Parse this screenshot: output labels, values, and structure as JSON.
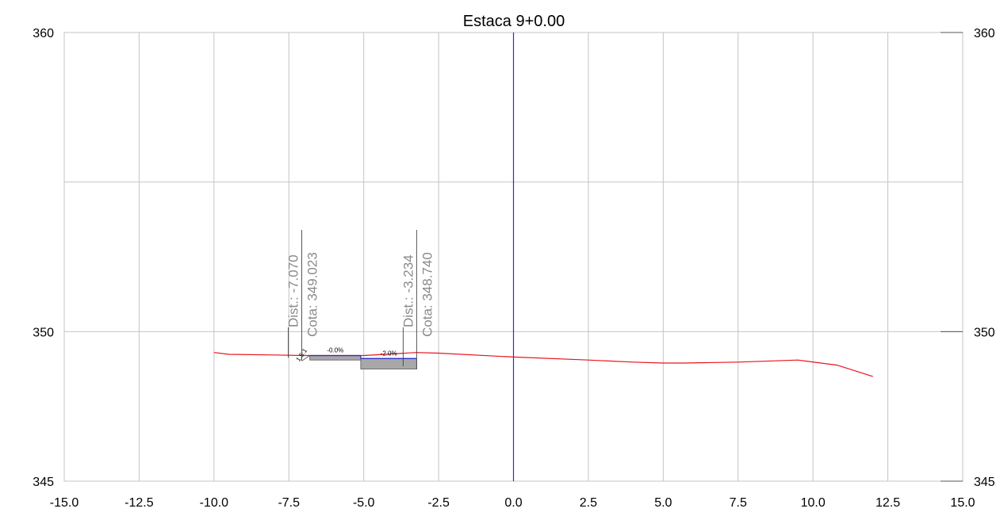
{
  "chart_data": {
    "type": "line",
    "title": "Estaca 9+0.00",
    "xlim": [
      -15.0,
      15.0
    ],
    "ylim": [
      345,
      360
    ],
    "x_ticks": [
      "-15.0",
      "-12.5",
      "-10.0",
      "-7.5",
      "-5.0",
      "-2.5",
      "0.0",
      "2.5",
      "5.0",
      "7.5",
      "10.0",
      "12.5",
      "15.0"
    ],
    "x_tick_values": [
      -15.0,
      -12.5,
      -10.0,
      -7.5,
      -5.0,
      -2.5,
      0.0,
      2.5,
      5.0,
      7.5,
      10.0,
      12.5,
      15.0
    ],
    "y_ticks_left": [
      "360",
      "350",
      "345"
    ],
    "y_ticks_right": [
      "360",
      "350",
      "345"
    ],
    "y_tick_values": [
      360,
      350,
      345
    ],
    "h_gridlines": [
      360,
      355,
      350,
      345
    ],
    "grid": true,
    "terrain": {
      "color": "#e8141c",
      "x": [
        -10.0,
        -9.5,
        -8.0,
        -7.0,
        -5.0,
        -3.234,
        -2.5,
        0.0,
        2.5,
        4.0,
        5.0,
        5.7,
        7.5,
        9.5,
        10.8,
        12.0
      ],
      "y": [
        349.3,
        349.24,
        349.22,
        349.2,
        349.2,
        349.3,
        349.28,
        349.15,
        349.05,
        348.98,
        348.95,
        348.95,
        348.98,
        349.05,
        348.88,
        348.5
      ]
    },
    "axis_line": {
      "x": 0.0,
      "color": "#2b2bd6"
    },
    "section": {
      "upper_platform": {
        "x": [
          -6.8,
          -5.1
        ],
        "y_top": 349.2,
        "y_bottom": 349.05,
        "slope_label": "-0.0%"
      },
      "lower_platform": {
        "x": [
          -5.1,
          -3.234
        ],
        "y_top": 349.1,
        "y_bottom": 348.75,
        "slope_label": "-2.0%"
      },
      "fill_color": "#a8a8a8",
      "top_color": "#3030c8",
      "slope_ratio_label": "1.5:1"
    },
    "annotations": [
      {
        "x": -7.07,
        "y": 349.023,
        "dist_label": "Dist.: -7.070",
        "cota_label": "Cota: 349.023"
      },
      {
        "x": -3.234,
        "y": 348.74,
        "dist_label": "Dist.: -3.234",
        "cota_label": "Cota: 348.740"
      }
    ]
  }
}
